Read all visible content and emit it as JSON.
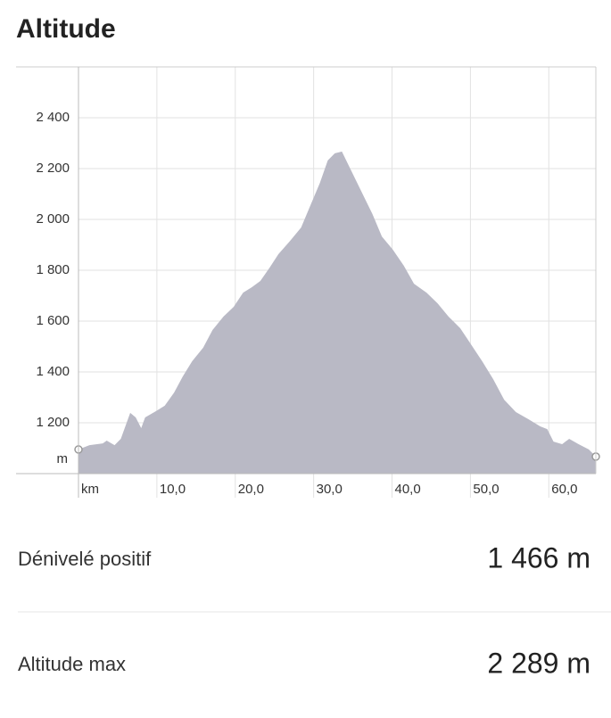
{
  "title": "Altitude",
  "chart_data": {
    "type": "area",
    "x_label": "km",
    "y_label": "m",
    "color": "#b9b9c5",
    "grid": true,
    "x": [
      0,
      1.4,
      3.1,
      3.6,
      4.6,
      5.4,
      6.6,
      7.3,
      8.0,
      8.5,
      9.9,
      11.0,
      12.2,
      13.3,
      14.5,
      15.9,
      17.1,
      18.5,
      19.8,
      21.0,
      22.1,
      23.2,
      24.4,
      25.5,
      27.0,
      28.4,
      29.6,
      30.8,
      31.8,
      32.7,
      33.6,
      34.6,
      36.1,
      37.5,
      38.7,
      40.1,
      41.5,
      42.8,
      44.4,
      45.8,
      47.2,
      48.7,
      50.0,
      51.5,
      52.9,
      54.3,
      55.8,
      57.4,
      58.9,
      59.8,
      60.6,
      61.7,
      62.6,
      63.8,
      65.1,
      66.0
    ],
    "values": [
      1095,
      1112,
      1119,
      1130,
      1112,
      1137,
      1239,
      1221,
      1179,
      1221,
      1246,
      1267,
      1319,
      1382,
      1442,
      1495,
      1565,
      1618,
      1656,
      1712,
      1733,
      1758,
      1811,
      1863,
      1916,
      1968,
      2056,
      2144,
      2232,
      2260,
      2267,
      2204,
      2109,
      2021,
      1933,
      1881,
      1818,
      1747,
      1712,
      1670,
      1618,
      1572,
      1512,
      1442,
      1372,
      1291,
      1242,
      1214,
      1186,
      1175,
      1126,
      1116,
      1137,
      1116,
      1095,
      1067
    ],
    "xlim": [
      0,
      66
    ],
    "ylim": [
      1000,
      2600
    ],
    "xticks": [
      {
        "value": 10,
        "label": "10,0"
      },
      {
        "value": 20,
        "label": "20,0"
      },
      {
        "value": 30,
        "label": "30,0"
      },
      {
        "value": 40,
        "label": "40,0"
      },
      {
        "value": 50,
        "label": "50,0"
      },
      {
        "value": 60,
        "label": "60,0"
      }
    ],
    "yticks": [
      {
        "value": 1200,
        "label": "1 200"
      },
      {
        "value": 1400,
        "label": "1 400"
      },
      {
        "value": 1600,
        "label": "1 600"
      },
      {
        "value": 1800,
        "label": "1 800"
      },
      {
        "value": 2000,
        "label": "2 000"
      },
      {
        "value": 2200,
        "label": "2 200"
      },
      {
        "value": 2400,
        "label": "2 400"
      }
    ]
  },
  "stats": [
    {
      "label": "Dénivelé positif",
      "value": "1 466 m"
    },
    {
      "label": "Altitude max",
      "value": "2 289 m"
    }
  ]
}
